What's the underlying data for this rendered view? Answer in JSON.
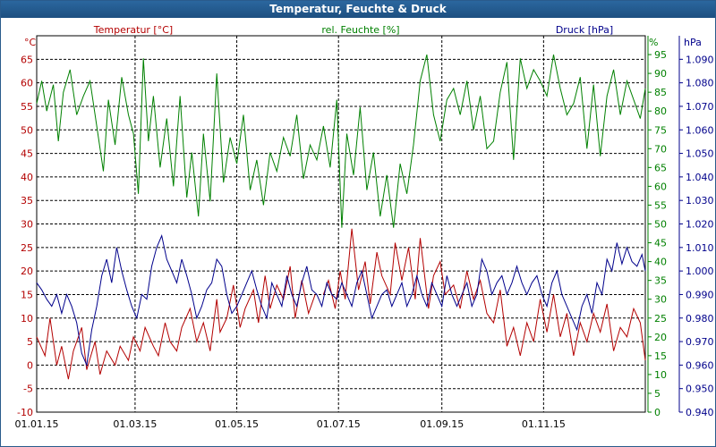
{
  "window": {
    "title": "Temperatur, Feuchte & Druck"
  },
  "colors": {
    "temperature": "#b30000",
    "humidity": "#008000",
    "pressure": "#00008b",
    "grid": "#000000"
  },
  "chart_data": {
    "type": "line",
    "title": "Temperatur, Feuchte & Druck",
    "x_tick_labels": [
      "01.01.15",
      "01.03.15",
      "01.05.15",
      "01.07.15",
      "01.09.15",
      "01.11.15"
    ],
    "x_tick_days": [
      0,
      59,
      120,
      181,
      243,
      304
    ],
    "x_range_days": [
      0,
      365
    ],
    "grid": true,
    "axes": [
      {
        "id": "temp",
        "side": "left",
        "label": "Temperatur [°C]",
        "unit": "°C",
        "min": -10,
        "max": 70,
        "ticks": [
          -10,
          -5,
          0,
          5,
          10,
          15,
          20,
          25,
          30,
          35,
          40,
          45,
          50,
          55,
          60,
          65
        ],
        "decimals": 0
      },
      {
        "id": "hum",
        "side": "right",
        "label": "rel. Feuchte [%]",
        "unit": "%",
        "min": 0,
        "max": 100,
        "ticks": [
          0,
          5,
          10,
          15,
          20,
          25,
          30,
          35,
          40,
          45,
          50,
          55,
          60,
          65,
          70,
          75,
          80,
          85,
          90,
          95
        ],
        "decimals": 0
      },
      {
        "id": "press",
        "side": "right",
        "label": "Druck [hPa]",
        "unit": "hPa",
        "min": 0.94,
        "max": 1.1,
        "ticks": [
          0.94,
          0.95,
          0.96,
          0.97,
          0.98,
          0.99,
          1.0,
          1.01,
          1.02,
          1.03,
          1.04,
          1.05,
          1.06,
          1.07,
          1.08,
          1.09
        ],
        "decimals": 3
      }
    ],
    "series": [
      {
        "name": "Temperatur [°C]",
        "axis": "temp",
        "x": [
          0,
          5,
          8,
          12,
          15,
          19,
          22,
          27,
          30,
          35,
          38,
          42,
          47,
          50,
          55,
          58,
          62,
          65,
          70,
          73,
          77,
          80,
          84,
          87,
          92,
          96,
          100,
          104,
          108,
          110,
          114,
          118,
          122,
          125,
          130,
          133,
          137,
          140,
          144,
          148,
          152,
          155,
          159,
          163,
          167
        ],
        "y": [
          6,
          2,
          10,
          0,
          4,
          -3,
          3,
          8,
          -1,
          5,
          -2,
          3,
          0,
          4,
          1,
          6,
          3,
          8,
          4,
          2,
          9,
          5,
          3,
          8,
          12,
          5,
          9,
          3,
          14,
          7,
          10,
          17,
          8,
          12,
          16,
          9,
          19,
          12,
          17,
          14,
          21,
          10,
          18,
          11,
          15
        ]
      },
      {
        "name": "Temperatur [°C]",
        "axis": "temp",
        "x": [
          172,
          175,
          179,
          182,
          185,
          189,
          193,
          197,
          200,
          204,
          207,
          212,
          215,
          219,
          223,
          227,
          230,
          235,
          238,
          242,
          245,
          250,
          254,
          258,
          262,
          266,
          270,
          274,
          278,
          282,
          286,
          290,
          294,
          298,
          302,
          306,
          310,
          314,
          318,
          322,
          326,
          330,
          334,
          338,
          342,
          346,
          350,
          354,
          358,
          362,
          365
        ],
        "y": [
          15,
          18,
          12,
          20,
          14,
          29,
          16,
          22,
          13,
          24,
          19,
          15,
          26,
          18,
          25,
          14,
          27,
          12,
          19,
          22,
          15,
          17,
          12,
          20,
          14,
          18,
          11,
          9,
          16,
          4,
          8,
          2,
          9,
          5,
          14,
          7,
          15,
          6,
          11,
          2,
          9,
          5,
          11,
          7,
          13,
          3,
          8,
          6,
          12,
          9,
          1
        ]
      },
      {
        "name": "rel. Feuchte [%]",
        "axis": "hum",
        "x": [
          0,
          3,
          6,
          10,
          13,
          16,
          20,
          24,
          28,
          32,
          36,
          40,
          43,
          47,
          51,
          55,
          58,
          61,
          64,
          67,
          70,
          74,
          78,
          82,
          86,
          90,
          93,
          97,
          100,
          104,
          108,
          112,
          116,
          120,
          124,
          128,
          132,
          136,
          140,
          144,
          148,
          152,
          156,
          160,
          164,
          168,
          172,
          176,
          180,
          183,
          186,
          190,
          194,
          198,
          202,
          206,
          210,
          214,
          218,
          222,
          226,
          230,
          234,
          238,
          242,
          246,
          250,
          254,
          258,
          262,
          266,
          270,
          274,
          278,
          282,
          286,
          290,
          294,
          298,
          302,
          306,
          310,
          314,
          318,
          322,
          326,
          330,
          334,
          338,
          342,
          346,
          350,
          354,
          358,
          362,
          365
        ],
        "y": [
          82,
          88,
          80,
          87,
          72,
          85,
          91,
          79,
          84,
          88,
          76,
          64,
          83,
          71,
          89,
          79,
          74,
          58,
          94,
          72,
          84,
          65,
          78,
          60,
          84,
          57,
          69,
          52,
          74,
          56,
          90,
          61,
          73,
          66,
          79,
          59,
          67,
          55,
          69,
          64,
          73,
          68,
          79,
          62,
          71,
          67,
          76,
          65,
          83,
          49,
          74,
          63,
          81,
          59,
          69,
          52,
          63,
          49,
          66,
          58,
          71,
          88,
          95,
          79,
          72,
          83,
          86,
          79,
          88,
          75,
          84,
          70,
          72,
          85,
          93,
          67,
          94,
          86,
          91,
          88,
          84,
          95,
          86,
          79,
          82,
          89,
          70,
          87,
          68,
          84,
          91,
          79,
          88,
          83,
          78,
          86
        ]
      },
      {
        "name": "Druck [hPa]",
        "axis": "press",
        "x": [
          0,
          3,
          6,
          9,
          12,
          15,
          18,
          21,
          24,
          27,
          30,
          33,
          36,
          39,
          42,
          45,
          48,
          51,
          54,
          57,
          60,
          63,
          66,
          69,
          72,
          75,
          78,
          81,
          84,
          87,
          90,
          93,
          96,
          99,
          102,
          105,
          108,
          111,
          114,
          117,
          120,
          123,
          126,
          129,
          132,
          135,
          138,
          141,
          144,
          147,
          150,
          153,
          156,
          159,
          162,
          165,
          168,
          171,
          174,
          177,
          180,
          183,
          186,
          189,
          192,
          195,
          198,
          201,
          204,
          207,
          210,
          213,
          216,
          219,
          222,
          225,
          228,
          231,
          234,
          237,
          240,
          243,
          246,
          249,
          252,
          255,
          258,
          261,
          264,
          267,
          270,
          273,
          276,
          279,
          282,
          285,
          288,
          291,
          294,
          297,
          300,
          303,
          306,
          309,
          312,
          315,
          318,
          321,
          324,
          327,
          330,
          333,
          336,
          339,
          342,
          345,
          348,
          351,
          354,
          357,
          360,
          363,
          365
        ],
        "y": [
          0.995,
          0.992,
          0.988,
          0.985,
          0.99,
          0.982,
          0.99,
          0.985,
          0.978,
          0.965,
          0.96,
          0.975,
          0.985,
          0.998,
          1.005,
          0.995,
          1.01,
          1.0,
          0.992,
          0.985,
          0.98,
          0.99,
          0.988,
          1.002,
          1.01,
          1.015,
          1.005,
          1.0,
          0.995,
          1.005,
          0.998,
          0.99,
          0.98,
          0.985,
          0.992,
          0.995,
          1.005,
          1.002,
          0.99,
          0.982,
          0.985,
          0.99,
          0.995,
          1.0,
          0.992,
          0.985,
          0.98,
          0.995,
          0.99,
          0.985,
          0.998,
          0.99,
          0.985,
          0.995,
          1.002,
          0.992,
          0.99,
          0.985,
          0.995,
          0.99,
          0.988,
          0.995,
          0.99,
          0.985,
          0.995,
          1.0,
          0.99,
          0.98,
          0.985,
          0.99,
          0.992,
          0.985,
          0.99,
          0.995,
          0.985,
          0.99,
          0.998,
          0.99,
          0.985,
          0.995,
          0.99,
          0.985,
          0.998,
          0.99,
          0.985,
          0.99,
          0.995,
          0.985,
          0.99,
          1.005,
          1.0,
          0.99,
          0.995,
          0.998,
          0.99,
          0.995,
          1.002,
          0.995,
          0.99,
          0.995,
          0.998,
          0.99,
          0.985,
          0.995,
          1.0,
          0.99,
          0.985,
          0.98,
          0.975,
          0.985,
          0.99,
          0.982,
          0.995,
          0.99,
          1.005,
          1.0,
          1.012,
          1.003,
          1.01,
          1.004,
          1.002,
          1.007,
          1.0
        ]
      }
    ]
  }
}
